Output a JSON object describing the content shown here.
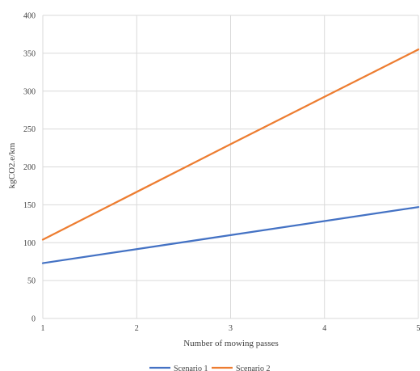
{
  "chart_data": {
    "type": "line",
    "title": "",
    "xlabel": "Number of mowing passes",
    "ylabel": "kgCO2.e/km",
    "x": [
      1,
      2,
      3,
      4,
      5
    ],
    "xlim": [
      1,
      5
    ],
    "ylim": [
      0,
      400
    ],
    "yticks": [
      0,
      50,
      100,
      150,
      200,
      250,
      300,
      350,
      400
    ],
    "grid": true,
    "legend_position": "bottom",
    "series": [
      {
        "name": "Scenario 1",
        "color": "#4472C4",
        "values": [
          73,
          91.5,
          110,
          128.5,
          147
        ]
      },
      {
        "name": "Scenario 2",
        "color": "#ED7D31",
        "values": [
          104,
          167,
          230,
          292.5,
          355
        ]
      }
    ]
  }
}
